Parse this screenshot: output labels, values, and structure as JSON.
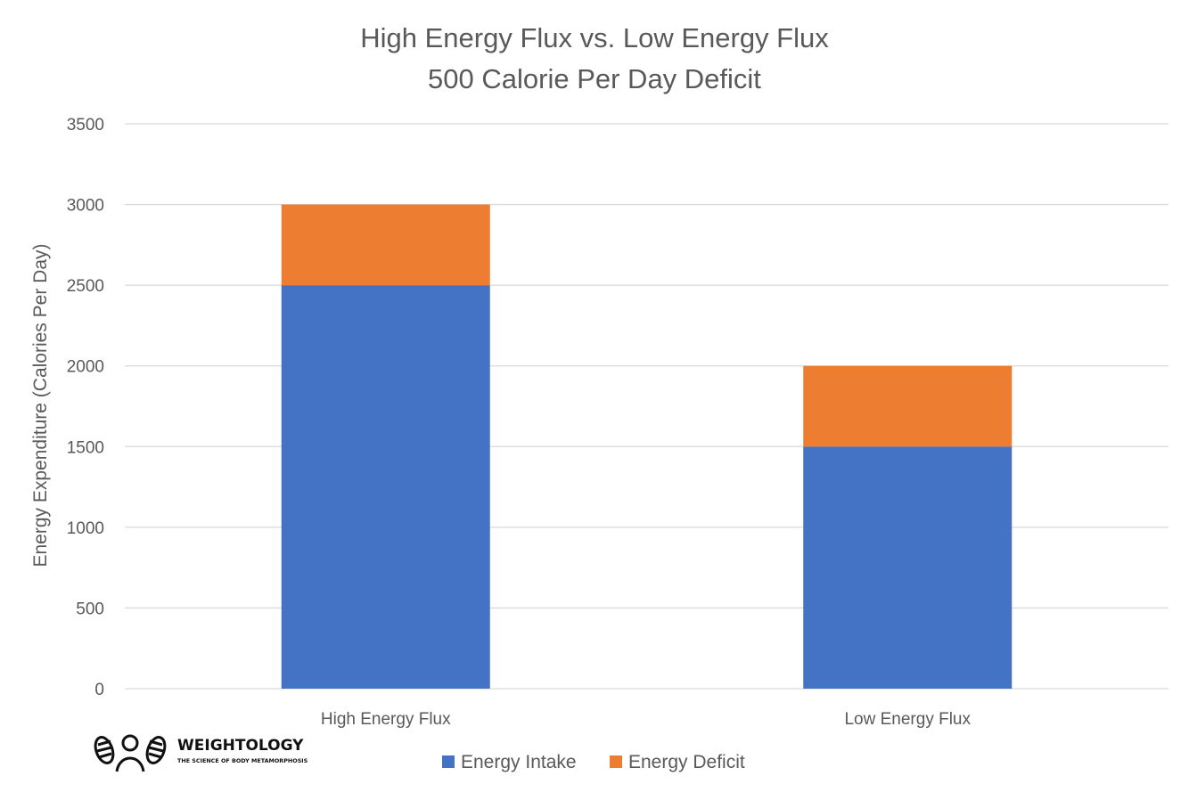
{
  "chart_data": {
    "type": "bar",
    "stacked": true,
    "title": "High Energy Flux vs. Low Energy Flux",
    "subtitle": "500 Calorie Per Day Deficit",
    "xlabel": "",
    "ylabel": "Energy Expenditure (Calories Per Day)",
    "categories": [
      "High Energy Flux",
      "Low Energy Flux"
    ],
    "series": [
      {
        "name": "Energy Intake",
        "values": [
          2500,
          1500
        ],
        "color": "#4472c4"
      },
      {
        "name": "Energy Deficit",
        "values": [
          500,
          500
        ],
        "color": "#ed7d31"
      }
    ],
    "ylim": [
      0,
      3500
    ],
    "yticks": [
      0,
      500,
      1000,
      1500,
      2000,
      2500,
      3000,
      3500
    ],
    "grid": true,
    "legend_position": "bottom"
  },
  "logo": {
    "name": "WEIGHTOLOGY",
    "tagline": "THE SCIENCE OF BODY METAMORPHOSIS",
    "icon": "weightology-logo-icon"
  },
  "colors": {
    "grid": "#d9d9d9",
    "text": "#595959"
  }
}
